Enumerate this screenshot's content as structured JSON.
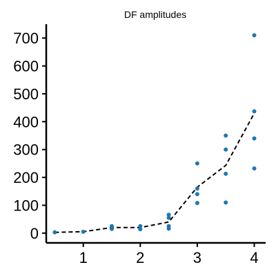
{
  "chart_data": {
    "type": "scatter",
    "title": "DF amplitudes",
    "xlabel": "",
    "ylabel": "",
    "xlim": [
      0.35,
      4.2
    ],
    "ylim": [
      -35,
      750
    ],
    "xticks": [
      1,
      2,
      3,
      4
    ],
    "yticks": [
      0,
      100,
      200,
      300,
      400,
      500,
      600,
      700
    ],
    "point_color": "#1f77b4",
    "line_color": "#000000",
    "grid": false,
    "series": [
      {
        "kind": "scatter",
        "points": [
          {
            "x": 0.5,
            "y": 3
          },
          {
            "x": 1.0,
            "y": 5
          },
          {
            "x": 1.5,
            "y": 15
          },
          {
            "x": 1.5,
            "y": 25
          },
          {
            "x": 2.0,
            "y": 14
          },
          {
            "x": 2.0,
            "y": 25
          },
          {
            "x": 2.5,
            "y": 16
          },
          {
            "x": 2.5,
            "y": 25
          },
          {
            "x": 2.5,
            "y": 55
          },
          {
            "x": 2.5,
            "y": 66
          },
          {
            "x": 3.0,
            "y": 108
          },
          {
            "x": 3.0,
            "y": 140
          },
          {
            "x": 3.0,
            "y": 160
          },
          {
            "x": 3.0,
            "y": 250
          },
          {
            "x": 3.5,
            "y": 110
          },
          {
            "x": 3.5,
            "y": 213
          },
          {
            "x": 3.5,
            "y": 300
          },
          {
            "x": 3.5,
            "y": 350
          },
          {
            "x": 4.0,
            "y": 232
          },
          {
            "x": 4.0,
            "y": 340
          },
          {
            "x": 4.0,
            "y": 437
          },
          {
            "x": 4.0,
            "y": 710
          }
        ]
      },
      {
        "kind": "line",
        "style": "dashed",
        "x": [
          0.5,
          1.0,
          1.5,
          2.0,
          2.5,
          3.0,
          3.5,
          4.0
        ],
        "y": [
          3,
          5,
          20,
          20,
          40,
          165,
          243,
          430
        ]
      }
    ]
  }
}
